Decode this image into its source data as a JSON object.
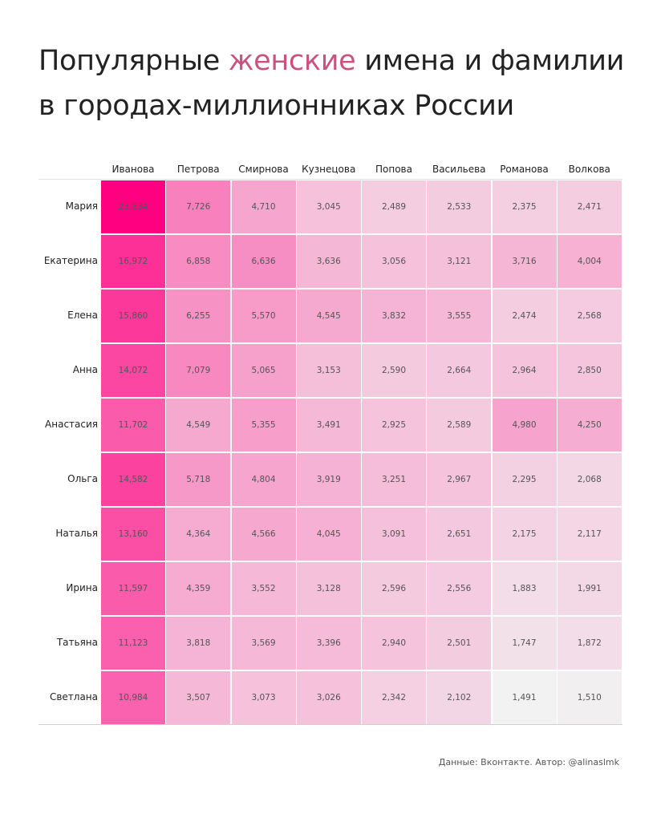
{
  "title": {
    "part1": "Популярные ",
    "accent": "женские",
    "part2": " имена и фамилии",
    "line2": "в городах-миллионниках России"
  },
  "colors": {
    "max": "#ff0080",
    "min": "#f2f2f2",
    "accent_title": "#c9527f"
  },
  "chart_data": {
    "type": "heatmap",
    "columns": [
      "Иванова",
      "Петрова",
      "Смирнова",
      "Кузнецова",
      "Попова",
      "Васильева",
      "Романова",
      "Волкова"
    ],
    "rows": [
      "Мария",
      "Екатерина",
      "Елена",
      "Анна",
      "Анастасия",
      "Ольга",
      "Наталья",
      "Ирина",
      "Татьяна",
      "Светлана"
    ],
    "values": [
      [
        23834,
        7726,
        4710,
        3045,
        2489,
        2533,
        2375,
        2471
      ],
      [
        16972,
        6858,
        6636,
        3636,
        3056,
        3121,
        3716,
        4004
      ],
      [
        15860,
        6255,
        5570,
        4545,
        3832,
        3555,
        2474,
        2568
      ],
      [
        14072,
        7079,
        5065,
        3153,
        2590,
        2664,
        2964,
        2850
      ],
      [
        11702,
        4549,
        5355,
        3491,
        2925,
        2589,
        4980,
        4250
      ],
      [
        14582,
        5718,
        4804,
        3919,
        3251,
        2967,
        2295,
        2068
      ],
      [
        13160,
        4364,
        4566,
        4045,
        3091,
        2651,
        2175,
        2117
      ],
      [
        11597,
        4359,
        3552,
        3128,
        2596,
        2556,
        1883,
        1991
      ],
      [
        11123,
        3818,
        3569,
        3396,
        2940,
        2501,
        1747,
        1872
      ],
      [
        10984,
        3507,
        3073,
        3026,
        2342,
        2102,
        1491,
        1510
      ]
    ],
    "labels": [
      [
        "23,834",
        "7,726",
        "4,710",
        "3,045",
        "2,489",
        "2,533",
        "2,375",
        "2,471"
      ],
      [
        "16,972",
        "6,858",
        "6,636",
        "3,636",
        "3,056",
        "3,121",
        "3,716",
        "4,004"
      ],
      [
        "15,860",
        "6,255",
        "5,570",
        "4,545",
        "3,832",
        "3,555",
        "2,474",
        "2,568"
      ],
      [
        "14,072",
        "7,079",
        "5,065",
        "3,153",
        "2,590",
        "2,664",
        "2,964",
        "2,850"
      ],
      [
        "11,702",
        "4,549",
        "5,355",
        "3,491",
        "2,925",
        "2,589",
        "4,980",
        "4,250"
      ],
      [
        "14,582",
        "5,718",
        "4,804",
        "3,919",
        "3,251",
        "2,967",
        "2,295",
        "2,068"
      ],
      [
        "13,160",
        "4,364",
        "4,566",
        "4,045",
        "3,091",
        "2,651",
        "2,175",
        "2,117"
      ],
      [
        "11,597",
        "4,359",
        "3,552",
        "3,128",
        "2,596",
        "2,556",
        "1,883",
        "1,991"
      ],
      [
        "11,123",
        "3,818",
        "3,569",
        "3,396",
        "2,940",
        "2,501",
        "1,747",
        "1,872"
      ],
      [
        "10,984",
        "3,507",
        "3,073",
        "3,026",
        "2,342",
        "2,102",
        "1,491",
        "1,510"
      ]
    ]
  },
  "footer": {
    "credit": "Данные: Вконтакте. Автор: @alinaslmk"
  }
}
